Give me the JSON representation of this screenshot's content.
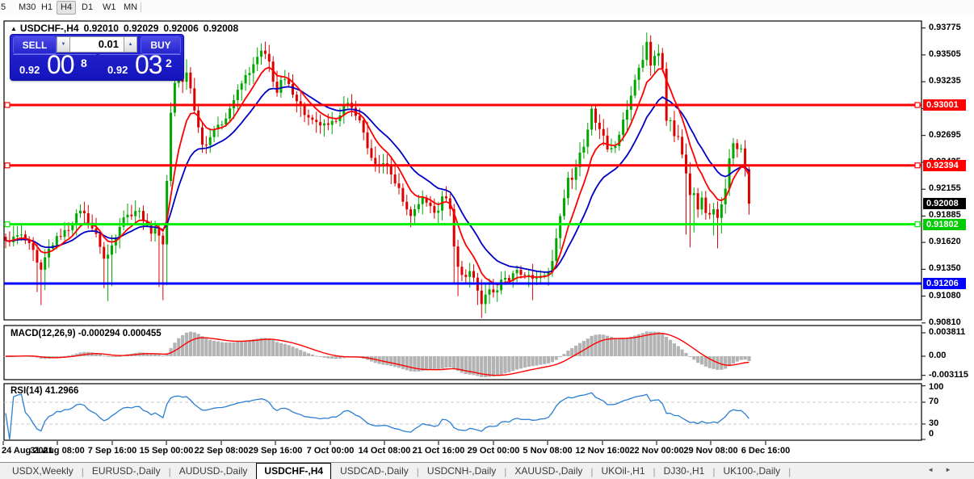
{
  "toolbar": {
    "timeframes": [
      "5",
      "M30",
      "H1",
      "H4",
      "D1",
      "W1",
      "MN"
    ],
    "active": "H4"
  },
  "chart": {
    "header": {
      "symbol": "USDCHF-,H4",
      "open": "0.92010",
      "high": "0.92029",
      "low": "0.92006",
      "close": "0.92008"
    },
    "price_axis": {
      "labels": [
        "0.93775",
        "0.93505",
        "0.93235",
        "0.92965",
        "0.92695",
        "0.92425",
        "0.92155",
        "0.91885",
        "0.91620",
        "0.91350",
        "0.91080",
        "0.90810"
      ],
      "values": [
        0.93775,
        0.93505,
        0.93235,
        0.92965,
        0.92695,
        0.92425,
        0.92155,
        0.91885,
        0.9162,
        0.9135,
        0.9108,
        0.9081
      ]
    },
    "time_axis": {
      "labels": [
        "24 Aug 2021",
        "31 Aug 08:00",
        "7 Sep 16:00",
        "15 Sep 00:00",
        "22 Sep 08:00",
        "29 Sep 16:00",
        "7 Oct 00:00",
        "14 Oct 08:00",
        "21 Oct 16:00",
        "29 Oct 00:00",
        "5 Nov 08:00",
        "12 Nov 16:00",
        "22 Nov 00:00",
        "29 Nov 08:00",
        "6 Dec 16:00"
      ]
    },
    "hlines": [
      {
        "value": 0.93001,
        "label": "0.93001",
        "color": "#ff0000",
        "tag_color": "#ff0000",
        "handles": true
      },
      {
        "value": 0.92394,
        "label": "0.92394",
        "color": "#ff0000",
        "tag_color": "#ff0000",
        "handles": true
      },
      {
        "value": 0.91802,
        "label": "0.91802",
        "color": "#00ee00",
        "tag_color": "#00cc00",
        "handles": true
      },
      {
        "value": 0.91206,
        "label": "0.91206",
        "color": "#0000ff",
        "tag_color": "#0000ff",
        "handles": false
      }
    ],
    "current_price": {
      "label": "0.92008",
      "value": 0.92008,
      "tag_color": "#000000"
    }
  },
  "trade_panel": {
    "sell_label": "SELL",
    "buy_label": "BUY",
    "volume": "0.01",
    "sell_price": {
      "prefix": "0.92",
      "big": "00",
      "sup": "8"
    },
    "buy_price": {
      "prefix": "0.92",
      "big": "03",
      "sup": "2"
    }
  },
  "indicators": {
    "macd": {
      "label": "MACD(12,26,9)",
      "values": "-0.000294 0.000455",
      "axis_labels": [
        "0.003811",
        "0.00",
        "-0.003115"
      ],
      "axis_values": [
        0.003811,
        0,
        -0.003115
      ],
      "histogram_color": "#b3b3b3",
      "signal_color": "#ff0000"
    },
    "rsi": {
      "label": "RSI(14)",
      "value": "41.2966",
      "axis_labels": [
        "100",
        "70",
        "30",
        "0"
      ],
      "axis_values": [
        100,
        70,
        30,
        0
      ],
      "levels": [
        70,
        30
      ],
      "line_color": "#2a7fd4",
      "level_color": "#c8c8c8"
    }
  },
  "tabs": {
    "items": [
      "USDX,Weekly",
      "EURUSD-,Daily",
      "AUDUSD-,Daily",
      "USDCHF-,H4",
      "USDCAD-,Daily",
      "USDCNH-,Daily",
      "XAUUSD-,Daily",
      "UKOil-,H1",
      "DJ30-,H1",
      "UK100-,Daily"
    ],
    "active_index": 3,
    "scroll_arrows": [
      "◄",
      "►"
    ]
  },
  "chart_data": {
    "type": "candlestick",
    "symbol": "USDCHF",
    "timeframe": "H4",
    "up_color": "#00a800",
    "down_color": "#dd0000",
    "ma_fast_color": "#ff0000",
    "ma_slow_color": "#0000c4",
    "anchors": [
      [
        7,
        0.9162
      ],
      [
        25,
        0.917
      ],
      [
        40,
        0.9155
      ],
      [
        50,
        0.913
      ],
      [
        58,
        0.9152
      ],
      [
        70,
        0.9166
      ],
      [
        85,
        0.9176
      ],
      [
        100,
        0.9196
      ],
      [
        112,
        0.918
      ],
      [
        122,
        0.9164
      ],
      [
        130,
        0.9142
      ],
      [
        140,
        0.9162
      ],
      [
        152,
        0.9188
      ],
      [
        162,
        0.919
      ],
      [
        170,
        0.9196
      ],
      [
        178,
        0.9185
      ],
      [
        186,
        0.9172
      ],
      [
        195,
        0.918
      ],
      [
        200,
        0.9146
      ],
      [
        205,
        0.919
      ],
      [
        209,
        0.927
      ],
      [
        214,
        0.9316
      ],
      [
        220,
        0.9331
      ],
      [
        226,
        0.9322
      ],
      [
        232,
        0.9334
      ],
      [
        238,
        0.9308
      ],
      [
        244,
        0.9282
      ],
      [
        253,
        0.9255
      ],
      [
        263,
        0.9276
      ],
      [
        270,
        0.9278
      ],
      [
        277,
        0.9284
      ],
      [
        284,
        0.9296
      ],
      [
        291,
        0.9308
      ],
      [
        297,
        0.9318
      ],
      [
        303,
        0.9328
      ],
      [
        309,
        0.9334
      ],
      [
        316,
        0.9342
      ],
      [
        322,
        0.9355
      ],
      [
        328,
        0.935
      ],
      [
        334,
        0.9342
      ],
      [
        342,
        0.931
      ],
      [
        350,
        0.9328
      ],
      [
        357,
        0.932
      ],
      [
        364,
        0.9311
      ],
      [
        371,
        0.93
      ],
      [
        378,
        0.929
      ],
      [
        385,
        0.9284
      ],
      [
        392,
        0.9281
      ],
      [
        400,
        0.928
      ],
      [
        407,
        0.9278
      ],
      [
        414,
        0.9284
      ],
      [
        421,
        0.9292
      ],
      [
        428,
        0.9302
      ],
      [
        435,
        0.9297
      ],
      [
        442,
        0.929
      ],
      [
        449,
        0.9276
      ],
      [
        455,
        0.9258
      ],
      [
        461,
        0.9243
      ],
      [
        466,
        0.9237
      ],
      [
        471,
        0.9241
      ],
      [
        476,
        0.9244
      ],
      [
        481,
        0.9236
      ],
      [
        486,
        0.9227
      ],
      [
        491,
        0.922
      ],
      [
        496,
        0.9211
      ],
      [
        501,
        0.92
      ],
      [
        506,
        0.9189
      ],
      [
        511,
        0.9192
      ],
      [
        517,
        0.9199
      ],
      [
        523,
        0.9208
      ],
      [
        528,
        0.9203
      ],
      [
        534,
        0.9196
      ],
      [
        540,
        0.9189
      ],
      [
        545,
        0.92
      ],
      [
        549,
        0.9216
      ],
      [
        553,
        0.9207
      ],
      [
        557,
        0.9196
      ],
      [
        561,
        0.9166
      ],
      [
        566,
        0.9139
      ],
      [
        571,
        0.9131
      ],
      [
        575,
        0.9124
      ],
      [
        579,
        0.9131
      ],
      [
        583,
        0.9136
      ],
      [
        587,
        0.9126
      ],
      [
        591,
        0.9113
      ],
      [
        595,
        0.9104
      ],
      [
        598,
        0.91
      ],
      [
        602,
        0.911
      ],
      [
        606,
        0.9117
      ],
      [
        610,
        0.9113
      ],
      [
        614,
        0.911
      ],
      [
        618,
        0.912
      ],
      [
        622,
        0.9128
      ],
      [
        626,
        0.9124
      ],
      [
        630,
        0.9121
      ],
      [
        634,
        0.9129
      ],
      [
        638,
        0.9136
      ],
      [
        642,
        0.913
      ],
      [
        646,
        0.9126
      ],
      [
        650,
        0.9129
      ],
      [
        654,
        0.9132
      ],
      [
        658,
        0.9126
      ],
      [
        662,
        0.9121
      ],
      [
        666,
        0.9126
      ],
      [
        670,
        0.913
      ],
      [
        674,
        0.913
      ],
      [
        678,
        0.9131
      ],
      [
        682,
        0.914
      ],
      [
        686,
        0.9152
      ],
      [
        691,
        0.9177
      ],
      [
        695,
        0.9192
      ],
      [
        698,
        0.9205
      ],
      [
        701,
        0.9218
      ],
      [
        704,
        0.9229
      ],
      [
        708,
        0.9227
      ],
      [
        711,
        0.9225
      ],
      [
        714,
        0.924
      ],
      [
        717,
        0.9254
      ],
      [
        720,
        0.9256
      ],
      [
        723,
        0.9258
      ],
      [
        726,
        0.9269
      ],
      [
        729,
        0.928
      ],
      [
        732,
        0.9295
      ],
      [
        734,
        0.9303
      ],
      [
        737,
        0.9287
      ],
      [
        739,
        0.9271
      ],
      [
        742,
        0.9276
      ],
      [
        744,
        0.928
      ],
      [
        747,
        0.9271
      ],
      [
        749,
        0.9263
      ],
      [
        752,
        0.9258
      ],
      [
        754,
        0.9254
      ],
      [
        757,
        0.9256
      ],
      [
        759,
        0.9258
      ],
      [
        762,
        0.926
      ],
      [
        764,
        0.9262
      ],
      [
        767,
        0.9272
      ],
      [
        769,
        0.928
      ],
      [
        772,
        0.9285
      ],
      [
        774,
        0.929
      ],
      [
        777,
        0.9297
      ],
      [
        779,
        0.9305
      ],
      [
        782,
        0.9314
      ],
      [
        784,
        0.9323
      ],
      [
        787,
        0.9329
      ],
      [
        790,
        0.9335
      ],
      [
        793,
        0.9339
      ],
      [
        795,
        0.9343
      ],
      [
        798,
        0.9355
      ],
      [
        800,
        0.9367
      ],
      [
        803,
        0.9352
      ],
      [
        805,
        0.9339
      ],
      [
        808,
        0.9345
      ],
      [
        810,
        0.9351
      ],
      [
        813,
        0.9353
      ],
      [
        815,
        0.9355
      ],
      [
        818,
        0.9349
      ],
      [
        820,
        0.9343
      ],
      [
        824,
        0.9281
      ],
      [
        829,
        0.929
      ],
      [
        834,
        0.9267
      ],
      [
        839,
        0.9271
      ],
      [
        844,
        0.9254
      ],
      [
        849,
        0.9234
      ],
      [
        854,
        0.9208
      ],
      [
        859,
        0.9213
      ],
      [
        864,
        0.9197
      ],
      [
        869,
        0.9205
      ],
      [
        874,
        0.9192
      ],
      [
        879,
        0.9188
      ],
      [
        884,
        0.9196
      ],
      [
        889,
        0.9188
      ],
      [
        894,
        0.9205
      ],
      [
        899,
        0.9217
      ],
      [
        904,
        0.9254
      ],
      [
        909,
        0.9262
      ],
      [
        914,
        0.9254
      ],
      [
        919,
        0.9258
      ],
      [
        923,
        0.9234
      ],
      [
        927,
        0.92008
      ]
    ],
    "spikes": [
      [
        50,
        "low",
        0.9099
      ],
      [
        135,
        "low",
        0.9103
      ],
      [
        201,
        "low",
        0.9104
      ],
      [
        232,
        "high",
        0.9346
      ],
      [
        322,
        "high",
        0.9362
      ],
      [
        424,
        "high",
        0.9309
      ],
      [
        567,
        "low",
        0.9108
      ],
      [
        598,
        "low",
        0.9086
      ],
      [
        614,
        "low",
        0.9102
      ],
      [
        660,
        "low",
        0.9104
      ],
      [
        800,
        "high",
        0.9373
      ],
      [
        854,
        "low",
        0.9157
      ],
      [
        887,
        "low",
        0.9156
      ]
    ]
  }
}
